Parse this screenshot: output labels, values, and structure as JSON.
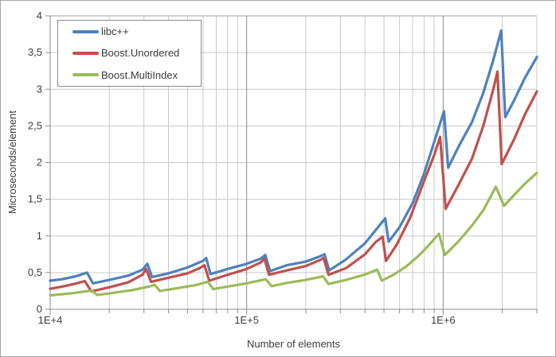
{
  "colors": {
    "axis": "#8c8c8c",
    "grid_minor": "#c9c9c9",
    "grid_major": "#8c8c8c",
    "plot_top_border": "#a3a3a3",
    "text": "#3b3b3b",
    "background": "#ffffff",
    "legend_border": "#8c8c8c",
    "outer_border": "#a6a6a6"
  },
  "chart_data": {
    "type": "line",
    "title": "",
    "xlabel": "Number of elements",
    "ylabel": "Microseconds/element",
    "x_scale": "log",
    "xlim": [
      10000,
      3000000
    ],
    "ylim": [
      0,
      4
    ],
    "grid": true,
    "legend_position": "top-left",
    "decimal_separator": ",",
    "y_ticks": [
      {
        "value": 0,
        "label": "0"
      },
      {
        "value": 0.5,
        "label": "0,5"
      },
      {
        "value": 1,
        "label": "1"
      },
      {
        "value": 1.5,
        "label": "1,5"
      },
      {
        "value": 2,
        "label": "2"
      },
      {
        "value": 2.5,
        "label": "2,5"
      },
      {
        "value": 3,
        "label": "3"
      },
      {
        "value": 3.5,
        "label": "3,5"
      },
      {
        "value": 4,
        "label": "4"
      }
    ],
    "x_major_ticks": [
      {
        "value": 10000,
        "label": "1E+4"
      },
      {
        "value": 100000,
        "label": "1E+5"
      },
      {
        "value": 1000000,
        "label": "1E+6"
      }
    ],
    "series": [
      {
        "id": "libcpp",
        "name": "libc++",
        "color": "#4f81bd",
        "points": [
          [
            10000,
            0.39
          ],
          [
            11500,
            0.41
          ],
          [
            13500,
            0.45
          ],
          [
            15400,
            0.5
          ],
          [
            16500,
            0.355
          ],
          [
            20000,
            0.4
          ],
          [
            25000,
            0.46
          ],
          [
            29500,
            0.54
          ],
          [
            31200,
            0.62
          ],
          [
            33000,
            0.44
          ],
          [
            40000,
            0.49
          ],
          [
            50000,
            0.57
          ],
          [
            60000,
            0.66
          ],
          [
            62200,
            0.7
          ],
          [
            65500,
            0.48
          ],
          [
            80000,
            0.55
          ],
          [
            100000,
            0.62
          ],
          [
            118000,
            0.69
          ],
          [
            124500,
            0.74
          ],
          [
            131500,
            0.52
          ],
          [
            160000,
            0.6
          ],
          [
            200000,
            0.65
          ],
          [
            240000,
            0.73
          ],
          [
            249000,
            0.75
          ],
          [
            263000,
            0.53
          ],
          [
            320000,
            0.68
          ],
          [
            400000,
            0.9
          ],
          [
            470000,
            1.13
          ],
          [
            507000,
            1.24
          ],
          [
            528000,
            0.92
          ],
          [
            600000,
            1.12
          ],
          [
            700000,
            1.45
          ],
          [
            800000,
            1.85
          ],
          [
            900000,
            2.28
          ],
          [
            1010000,
            2.7
          ],
          [
            1060000,
            1.93
          ],
          [
            1200000,
            2.22
          ],
          [
            1400000,
            2.55
          ],
          [
            1600000,
            2.95
          ],
          [
            1800000,
            3.4
          ],
          [
            1975000,
            3.8
          ],
          [
            2070000,
            2.62
          ],
          [
            2300000,
            2.85
          ],
          [
            2600000,
            3.15
          ],
          [
            3000000,
            3.44
          ]
        ]
      },
      {
        "id": "boost-unordered",
        "name": "Boost.Unordered",
        "color": "#c0504d",
        "points": [
          [
            10000,
            0.28
          ],
          [
            11500,
            0.31
          ],
          [
            13500,
            0.35
          ],
          [
            15000,
            0.385
          ],
          [
            16200,
            0.245
          ],
          [
            20000,
            0.3
          ],
          [
            25000,
            0.37
          ],
          [
            29500,
            0.47
          ],
          [
            30800,
            0.55
          ],
          [
            32600,
            0.375
          ],
          [
            40000,
            0.43
          ],
          [
            50000,
            0.49
          ],
          [
            58000,
            0.565
          ],
          [
            61000,
            0.6
          ],
          [
            64500,
            0.39
          ],
          [
            80000,
            0.47
          ],
          [
            100000,
            0.55
          ],
          [
            118000,
            0.64
          ],
          [
            123000,
            0.69
          ],
          [
            130000,
            0.47
          ],
          [
            160000,
            0.53
          ],
          [
            200000,
            0.59
          ],
          [
            240000,
            0.68
          ],
          [
            246500,
            0.7
          ],
          [
            261000,
            0.47
          ],
          [
            320000,
            0.56
          ],
          [
            400000,
            0.75
          ],
          [
            455000,
            0.92
          ],
          [
            492000,
            0.99
          ],
          [
            512000,
            0.66
          ],
          [
            580000,
            0.88
          ],
          [
            680000,
            1.25
          ],
          [
            800000,
            1.75
          ],
          [
            900000,
            2.1
          ],
          [
            965000,
            2.35
          ],
          [
            1030000,
            1.37
          ],
          [
            1200000,
            1.7
          ],
          [
            1400000,
            2.05
          ],
          [
            1600000,
            2.5
          ],
          [
            1800000,
            3.0
          ],
          [
            1890000,
            3.24
          ],
          [
            1985000,
            1.98
          ],
          [
            2300000,
            2.32
          ],
          [
            2600000,
            2.65
          ],
          [
            3000000,
            2.97
          ]
        ]
      },
      {
        "id": "boost-multiindex",
        "name": "Boost.MultiIndex",
        "color": "#9bbb59",
        "points": [
          [
            10000,
            0.19
          ],
          [
            13000,
            0.22
          ],
          [
            16200,
            0.255
          ],
          [
            17400,
            0.195
          ],
          [
            21000,
            0.225
          ],
          [
            26000,
            0.26
          ],
          [
            32500,
            0.315
          ],
          [
            34000,
            0.335
          ],
          [
            36200,
            0.25
          ],
          [
            45000,
            0.29
          ],
          [
            55000,
            0.33
          ],
          [
            63500,
            0.375
          ],
          [
            67500,
            0.275
          ],
          [
            80000,
            0.31
          ],
          [
            100000,
            0.355
          ],
          [
            125000,
            0.41
          ],
          [
            134000,
            0.315
          ],
          [
            160000,
            0.36
          ],
          [
            200000,
            0.4
          ],
          [
            245000,
            0.45
          ],
          [
            261000,
            0.345
          ],
          [
            320000,
            0.4
          ],
          [
            400000,
            0.475
          ],
          [
            462000,
            0.54
          ],
          [
            487000,
            0.39
          ],
          [
            560000,
            0.47
          ],
          [
            650000,
            0.585
          ],
          [
            750000,
            0.73
          ],
          [
            850000,
            0.88
          ],
          [
            952000,
            1.03
          ],
          [
            1020000,
            0.74
          ],
          [
            1200000,
            0.93
          ],
          [
            1400000,
            1.14
          ],
          [
            1600000,
            1.35
          ],
          [
            1855000,
            1.67
          ],
          [
            2040000,
            1.41
          ],
          [
            2300000,
            1.56
          ],
          [
            2600000,
            1.71
          ],
          [
            3000000,
            1.86
          ]
        ]
      }
    ]
  }
}
